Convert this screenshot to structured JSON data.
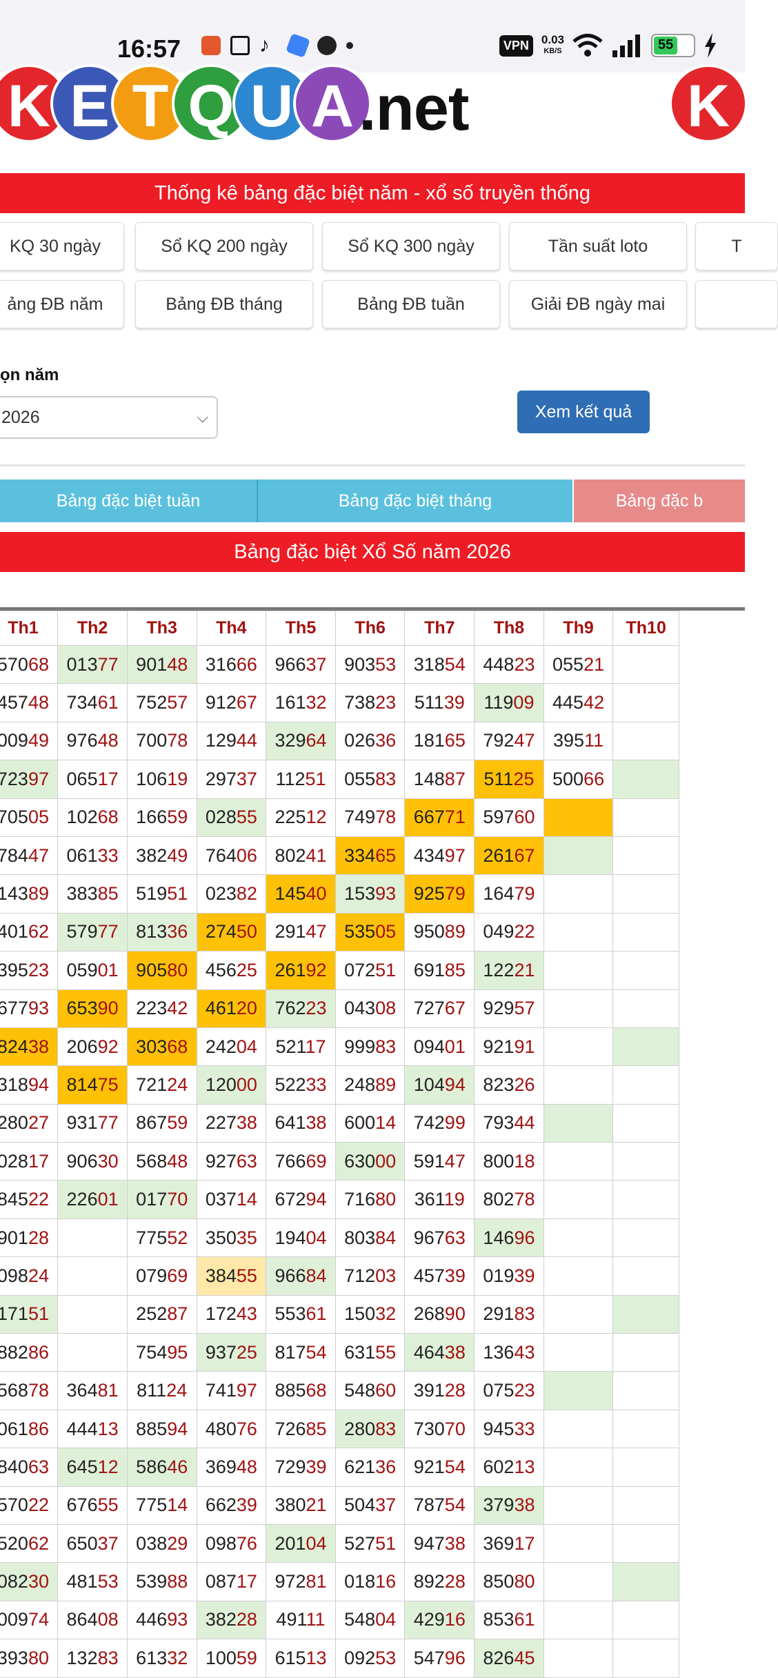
{
  "status_bar": {
    "time": "16:57",
    "vpn": "VPN",
    "speed": "0.03",
    "speed_unit": "KB/S",
    "battery": "55",
    "icons": [
      "game-icon",
      "capcut-icon",
      "tiktok-icon",
      "app-icon",
      "circle-icon",
      "dot-icon",
      "wifi-icon",
      "signal-icon",
      "battery-icon",
      "charging-icon"
    ]
  },
  "logo": {
    "letters": [
      "K",
      "E",
      "T",
      "Q",
      "U",
      "A"
    ],
    "colors": [
      "#e3262b",
      "#3b58b7",
      "#f39c12",
      "#2e9e3e",
      "#2d86d0",
      "#8b4ab8"
    ],
    "suffix": ".net",
    "partial_right": "K"
  },
  "banner_title": "Thống kê bảng đặc biệt năm - xổ số truyền thống",
  "nav": {
    "row1": [
      "KQ 30 ngày",
      "Sổ KQ 200 ngày",
      "Sổ KQ 300 ngày",
      "Tần suất loto",
      "T"
    ],
    "row2": [
      "ảng ĐB năm",
      "Bảng ĐB tháng",
      "Bảng ĐB tuần",
      "Giải ĐB ngày mai",
      ""
    ]
  },
  "form": {
    "year_label": "ọn năm",
    "year_value": "2026",
    "submit_label": "Xem kết quả"
  },
  "tabs": [
    {
      "label": "Bảng đặc biệt tuần",
      "color": "#5bc0de"
    },
    {
      "label": "Bảng đặc biệt tháng",
      "color": "#5bc0de"
    },
    {
      "label": "Bảng đặc b",
      "color": "#e68a8a"
    }
  ],
  "table_title": "Bảng đặc biệt Xổ Số năm 2026",
  "table": {
    "headers": [
      "",
      "Th1",
      "Th2",
      "Th3",
      "Th4",
      "Th5",
      "Th6",
      "Th7",
      "Th8",
      "Th9",
      "Th10"
    ],
    "rows": [
      [
        [
          "",
          ""
        ],
        [
          "57068",
          ""
        ],
        [
          "01377",
          "g"
        ],
        [
          "90148",
          "g"
        ],
        [
          "31666",
          ""
        ],
        [
          "96637",
          ""
        ],
        [
          "90353",
          ""
        ],
        [
          "31854",
          ""
        ],
        [
          "44823",
          ""
        ],
        [
          "05521",
          ""
        ],
        [
          "",
          ""
        ]
      ],
      [
        [
          "",
          ""
        ],
        [
          "45748",
          ""
        ],
        [
          "73461",
          ""
        ],
        [
          "75257",
          ""
        ],
        [
          "91267",
          ""
        ],
        [
          "16132",
          ""
        ],
        [
          "73823",
          ""
        ],
        [
          "51139",
          ""
        ],
        [
          "11909",
          "g"
        ],
        [
          "44542",
          ""
        ],
        [
          "",
          ""
        ]
      ],
      [
        [
          "",
          ""
        ],
        [
          "00949",
          ""
        ],
        [
          "97648",
          ""
        ],
        [
          "70078",
          ""
        ],
        [
          "12944",
          ""
        ],
        [
          "32964",
          "g"
        ],
        [
          "02636",
          ""
        ],
        [
          "18165",
          ""
        ],
        [
          "79247",
          ""
        ],
        [
          "39511",
          ""
        ],
        [
          "",
          ""
        ]
      ],
      [
        [
          "",
          ""
        ],
        [
          "72397",
          "g"
        ],
        [
          "06517",
          ""
        ],
        [
          "10619",
          ""
        ],
        [
          "29737",
          ""
        ],
        [
          "11251",
          ""
        ],
        [
          "05583",
          ""
        ],
        [
          "14887",
          ""
        ],
        [
          "51125",
          "o"
        ],
        [
          "50066",
          ""
        ],
        [
          "",
          "g"
        ]
      ],
      [
        [
          "",
          ""
        ],
        [
          "70505",
          ""
        ],
        [
          "10268",
          ""
        ],
        [
          "16659",
          ""
        ],
        [
          "02855",
          "g"
        ],
        [
          "22512",
          ""
        ],
        [
          "74978",
          ""
        ],
        [
          "66771",
          "o"
        ],
        [
          "59760",
          ""
        ],
        [
          "",
          "o"
        ],
        [
          "",
          ""
        ]
      ],
      [
        [
          "",
          ""
        ],
        [
          "78447",
          ""
        ],
        [
          "06133",
          ""
        ],
        [
          "38249",
          ""
        ],
        [
          "76406",
          ""
        ],
        [
          "80241",
          ""
        ],
        [
          "33465",
          "o"
        ],
        [
          "43497",
          ""
        ],
        [
          "26167",
          "o"
        ],
        [
          "",
          "g"
        ],
        [
          "",
          ""
        ]
      ],
      [
        [
          "",
          ""
        ],
        [
          "14389",
          ""
        ],
        [
          "38385",
          ""
        ],
        [
          "51951",
          ""
        ],
        [
          "02382",
          ""
        ],
        [
          "14540",
          "o"
        ],
        [
          "15393",
          "g"
        ],
        [
          "92579",
          "o"
        ],
        [
          "16479",
          ""
        ],
        [
          "",
          ""
        ],
        [
          "",
          ""
        ]
      ],
      [
        [
          "",
          ""
        ],
        [
          "40162",
          ""
        ],
        [
          "57977",
          "g"
        ],
        [
          "81336",
          "g"
        ],
        [
          "27450",
          "o"
        ],
        [
          "29147",
          ""
        ],
        [
          "53505",
          "o"
        ],
        [
          "95089",
          ""
        ],
        [
          "04922",
          ""
        ],
        [
          "",
          ""
        ],
        [
          "",
          ""
        ]
      ],
      [
        [
          "",
          ""
        ],
        [
          "39523",
          ""
        ],
        [
          "05901",
          ""
        ],
        [
          "90580",
          "o"
        ],
        [
          "45625",
          ""
        ],
        [
          "26192",
          "o"
        ],
        [
          "07251",
          ""
        ],
        [
          "69185",
          ""
        ],
        [
          "12221",
          "g"
        ],
        [
          "",
          ""
        ],
        [
          "",
          ""
        ]
      ],
      [
        [
          "",
          ""
        ],
        [
          "67793",
          ""
        ],
        [
          "65390",
          "o"
        ],
        [
          "22342",
          ""
        ],
        [
          "46120",
          "o"
        ],
        [
          "76223",
          "g"
        ],
        [
          "04308",
          ""
        ],
        [
          "72767",
          ""
        ],
        [
          "92957",
          ""
        ],
        [
          "",
          ""
        ],
        [
          "",
          ""
        ]
      ],
      [
        [
          "",
          "o"
        ],
        [
          "82438",
          "o"
        ],
        [
          "20692",
          ""
        ],
        [
          "30368",
          "o"
        ],
        [
          "24204",
          ""
        ],
        [
          "52117",
          ""
        ],
        [
          "99983",
          ""
        ],
        [
          "09401",
          ""
        ],
        [
          "92191",
          ""
        ],
        [
          "",
          ""
        ],
        [
          "",
          "g"
        ]
      ],
      [
        [
          "",
          ""
        ],
        [
          "31894",
          ""
        ],
        [
          "81475",
          "o"
        ],
        [
          "72124",
          ""
        ],
        [
          "12000",
          "g"
        ],
        [
          "52233",
          ""
        ],
        [
          "24889",
          ""
        ],
        [
          "10494",
          "g"
        ],
        [
          "82326",
          ""
        ],
        [
          "",
          ""
        ],
        [
          "",
          ""
        ]
      ],
      [
        [
          "",
          ""
        ],
        [
          "28027",
          ""
        ],
        [
          "93177",
          ""
        ],
        [
          "86759",
          ""
        ],
        [
          "22738",
          ""
        ],
        [
          "64138",
          ""
        ],
        [
          "60014",
          ""
        ],
        [
          "74299",
          ""
        ],
        [
          "79344",
          ""
        ],
        [
          "",
          "g"
        ],
        [
          "",
          ""
        ]
      ],
      [
        [
          "",
          ""
        ],
        [
          "02817",
          ""
        ],
        [
          "90630",
          ""
        ],
        [
          "56848",
          ""
        ],
        [
          "92763",
          ""
        ],
        [
          "76669",
          ""
        ],
        [
          "63000",
          "g"
        ],
        [
          "59147",
          ""
        ],
        [
          "80018",
          ""
        ],
        [
          "",
          ""
        ],
        [
          "",
          ""
        ]
      ],
      [
        [
          "",
          ""
        ],
        [
          "84522",
          ""
        ],
        [
          "22601",
          "g"
        ],
        [
          "01770",
          "g"
        ],
        [
          "03714",
          ""
        ],
        [
          "67294",
          ""
        ],
        [
          "71680",
          ""
        ],
        [
          "36119",
          ""
        ],
        [
          "80278",
          ""
        ],
        [
          "",
          ""
        ],
        [
          "",
          ""
        ]
      ],
      [
        [
          "",
          ""
        ],
        [
          "90128",
          ""
        ],
        [
          "",
          ""
        ],
        [
          "77552",
          ""
        ],
        [
          "35035",
          ""
        ],
        [
          "19404",
          ""
        ],
        [
          "80384",
          ""
        ],
        [
          "96763",
          ""
        ],
        [
          "14696",
          "g"
        ],
        [
          "",
          ""
        ],
        [
          "",
          ""
        ]
      ],
      [
        [
          "",
          ""
        ],
        [
          "09824",
          ""
        ],
        [
          "",
          ""
        ],
        [
          "07969",
          ""
        ],
        [
          "38455",
          "y"
        ],
        [
          "96684",
          "g"
        ],
        [
          "71203",
          ""
        ],
        [
          "45739",
          ""
        ],
        [
          "01939",
          ""
        ],
        [
          "",
          ""
        ],
        [
          "",
          ""
        ]
      ],
      [
        [
          "",
          ""
        ],
        [
          "17151",
          "g"
        ],
        [
          "",
          ""
        ],
        [
          "25287",
          ""
        ],
        [
          "17243",
          ""
        ],
        [
          "55361",
          ""
        ],
        [
          "15032",
          ""
        ],
        [
          "26890",
          ""
        ],
        [
          "29183",
          ""
        ],
        [
          "",
          ""
        ],
        [
          "",
          "g"
        ]
      ],
      [
        [
          "",
          ""
        ],
        [
          "88286",
          ""
        ],
        [
          "",
          ""
        ],
        [
          "75495",
          ""
        ],
        [
          "93725",
          "g"
        ],
        [
          "81754",
          ""
        ],
        [
          "63155",
          ""
        ],
        [
          "46438",
          "g"
        ],
        [
          "13643",
          ""
        ],
        [
          "",
          ""
        ],
        [
          "",
          ""
        ]
      ],
      [
        [
          "",
          ""
        ],
        [
          "56878",
          ""
        ],
        [
          "36481",
          ""
        ],
        [
          "81124",
          ""
        ],
        [
          "74197",
          ""
        ],
        [
          "88568",
          ""
        ],
        [
          "54860",
          ""
        ],
        [
          "39128",
          ""
        ],
        [
          "07523",
          ""
        ],
        [
          "",
          "g"
        ],
        [
          "",
          ""
        ]
      ],
      [
        [
          "",
          ""
        ],
        [
          "06186",
          ""
        ],
        [
          "44413",
          ""
        ],
        [
          "88594",
          ""
        ],
        [
          "48076",
          ""
        ],
        [
          "72685",
          ""
        ],
        [
          "28083",
          "g"
        ],
        [
          "73070",
          ""
        ],
        [
          "94533",
          ""
        ],
        [
          "",
          ""
        ],
        [
          "",
          ""
        ]
      ],
      [
        [
          "",
          ""
        ],
        [
          "84063",
          ""
        ],
        [
          "64512",
          "g"
        ],
        [
          "58646",
          "g"
        ],
        [
          "36948",
          ""
        ],
        [
          "72939",
          ""
        ],
        [
          "62136",
          ""
        ],
        [
          "92154",
          ""
        ],
        [
          "60213",
          ""
        ],
        [
          "",
          ""
        ],
        [
          "",
          ""
        ]
      ],
      [
        [
          "",
          ""
        ],
        [
          "57022",
          ""
        ],
        [
          "67655",
          ""
        ],
        [
          "77514",
          ""
        ],
        [
          "66239",
          ""
        ],
        [
          "38021",
          ""
        ],
        [
          "50437",
          ""
        ],
        [
          "78754",
          ""
        ],
        [
          "37938",
          "g"
        ],
        [
          "",
          ""
        ],
        [
          "",
          ""
        ]
      ],
      [
        [
          "",
          ""
        ],
        [
          "52062",
          ""
        ],
        [
          "65037",
          ""
        ],
        [
          "03829",
          ""
        ],
        [
          "09876",
          ""
        ],
        [
          "20104",
          "g"
        ],
        [
          "52751",
          ""
        ],
        [
          "94738",
          ""
        ],
        [
          "36917",
          ""
        ],
        [
          "",
          ""
        ],
        [
          "",
          ""
        ]
      ],
      [
        [
          "",
          ""
        ],
        [
          "08230",
          "g"
        ],
        [
          "48153",
          ""
        ],
        [
          "53988",
          ""
        ],
        [
          "08717",
          ""
        ],
        [
          "97281",
          ""
        ],
        [
          "01816",
          ""
        ],
        [
          "89228",
          ""
        ],
        [
          "85080",
          ""
        ],
        [
          "",
          ""
        ],
        [
          "",
          "g"
        ]
      ],
      [
        [
          "",
          ""
        ],
        [
          "00974",
          ""
        ],
        [
          "86408",
          ""
        ],
        [
          "44693",
          ""
        ],
        [
          "38228",
          "g"
        ],
        [
          "49111",
          ""
        ],
        [
          "54804",
          ""
        ],
        [
          "42916",
          "g"
        ],
        [
          "85361",
          ""
        ],
        [
          "",
          ""
        ],
        [
          "",
          ""
        ]
      ],
      [
        [
          "",
          ""
        ],
        [
          "39380",
          ""
        ],
        [
          "13283",
          ""
        ],
        [
          "61332",
          ""
        ],
        [
          "10059",
          ""
        ],
        [
          "61513",
          ""
        ],
        [
          "09253",
          ""
        ],
        [
          "54796",
          ""
        ],
        [
          "82645",
          "g"
        ],
        [
          "",
          ""
        ],
        [
          "",
          ""
        ]
      ]
    ]
  }
}
